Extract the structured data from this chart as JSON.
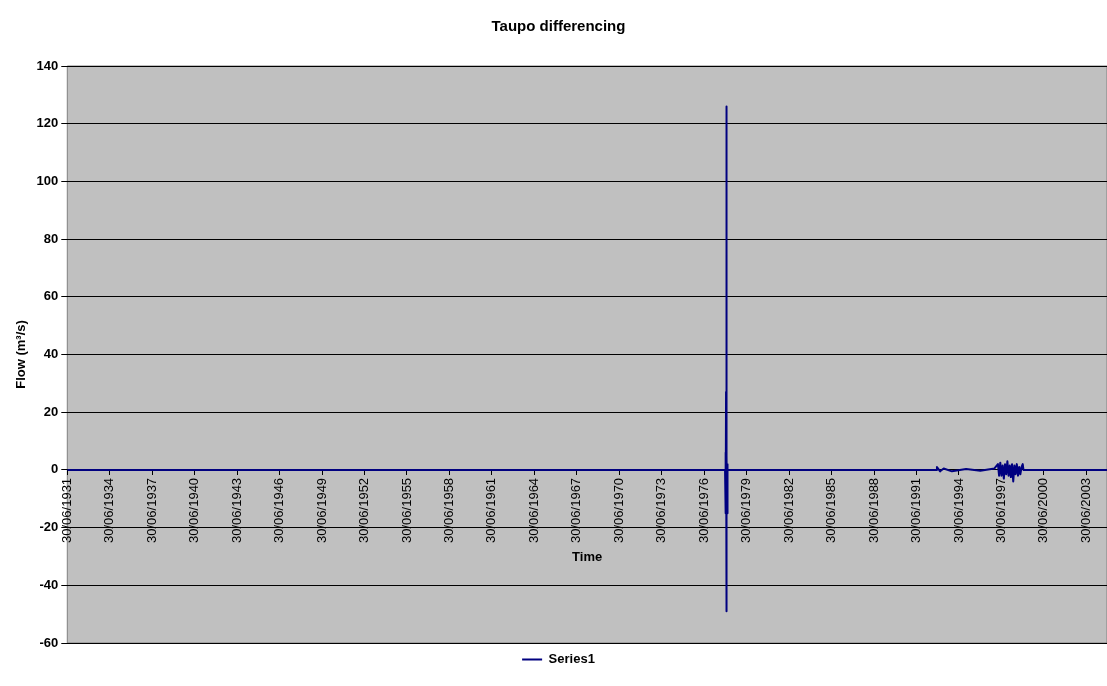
{
  "chart_data": {
    "type": "line",
    "title": "Taupo differencing",
    "xlabel": "Time",
    "ylabel": "Flow (m³/s)",
    "xlim": [
      "1931-06-30",
      "2004-12-15"
    ],
    "xticks": [
      {
        "value": "1931-06-30",
        "label": "30/06/1931"
      },
      {
        "value": "1934-06-30",
        "label": "30/06/1934"
      },
      {
        "value": "1937-06-30",
        "label": "30/06/1937"
      },
      {
        "value": "1940-06-30",
        "label": "30/06/1940"
      },
      {
        "value": "1943-06-30",
        "label": "30/06/1943"
      },
      {
        "value": "1946-06-30",
        "label": "30/06/1946"
      },
      {
        "value": "1949-06-30",
        "label": "30/06/1949"
      },
      {
        "value": "1952-06-30",
        "label": "30/06/1952"
      },
      {
        "value": "1955-06-30",
        "label": "30/06/1955"
      },
      {
        "value": "1958-06-30",
        "label": "30/06/1958"
      },
      {
        "value": "1961-06-30",
        "label": "30/06/1961"
      },
      {
        "value": "1964-06-30",
        "label": "30/06/1964"
      },
      {
        "value": "1967-06-30",
        "label": "30/06/1967"
      },
      {
        "value": "1970-06-30",
        "label": "30/06/1970"
      },
      {
        "value": "1973-06-30",
        "label": "30/06/1973"
      },
      {
        "value": "1976-06-30",
        "label": "30/06/1976"
      },
      {
        "value": "1979-06-30",
        "label": "30/06/1979"
      },
      {
        "value": "1982-06-30",
        "label": "30/06/1982"
      },
      {
        "value": "1985-06-30",
        "label": "30/06/1985"
      },
      {
        "value": "1988-06-30",
        "label": "30/06/1988"
      },
      {
        "value": "1991-06-30",
        "label": "30/06/1991"
      },
      {
        "value": "1994-06-30",
        "label": "30/06/1994"
      },
      {
        "value": "1997-06-30",
        "label": "30/06/1997"
      },
      {
        "value": "2000-06-30",
        "label": "30/06/2000"
      },
      {
        "value": "2003-06-30",
        "label": "30/06/2003"
      }
    ],
    "ylim": [
      -60,
      140
    ],
    "yticks": [
      -60,
      -40,
      -20,
      0,
      20,
      40,
      60,
      80,
      100,
      120,
      140
    ],
    "grid": "y",
    "legend": "bottom",
    "marker": "none",
    "series": [
      {
        "name": "Series1",
        "color": "#000080",
        "x": [
          "1931-06-30",
          "1977-12-20",
          "1978-01-01",
          "1978-01-08",
          "1978-01-15",
          "1978-01-20",
          "1978-01-25",
          "1978-02-05",
          "1978-02-10",
          "1978-02-15",
          "1978-02-20",
          "1978-03-01",
          "1992-12-01",
          "1992-12-10",
          "1993-03-01",
          "1993-06-01",
          "1994-01-01",
          "1995-01-01",
          "1996-01-01",
          "1997-01-01",
          "1997-04-01",
          "1997-05-01",
          "1997-06-01",
          "1997-07-01",
          "1997-08-01",
          "1997-09-01",
          "1997-10-01",
          "1997-11-01",
          "1997-12-01",
          "1998-01-01",
          "1998-02-01",
          "1998-03-01",
          "1998-04-01",
          "1998-05-01",
          "1998-06-01",
          "1998-07-01",
          "1998-08-01",
          "1998-09-01",
          "1998-10-01",
          "1998-11-01",
          "1998-12-01",
          "1999-01-01",
          "1999-01-20",
          "2004-12-15"
        ],
        "values": [
          0,
          0,
          6,
          -15,
          27,
          -49,
          126,
          5,
          -15,
          2,
          0,
          0,
          0,
          1,
          -0.5,
          0.5,
          -0.5,
          0.3,
          -0.3,
          0.5,
          2,
          -2,
          2.5,
          -2,
          1.5,
          -3,
          2,
          -1.5,
          3,
          -2,
          1.5,
          -2.5,
          2,
          -4,
          1.5,
          -1.5,
          2,
          -2,
          1,
          -1.5,
          1,
          2,
          0,
          0
        ]
      }
    ]
  }
}
